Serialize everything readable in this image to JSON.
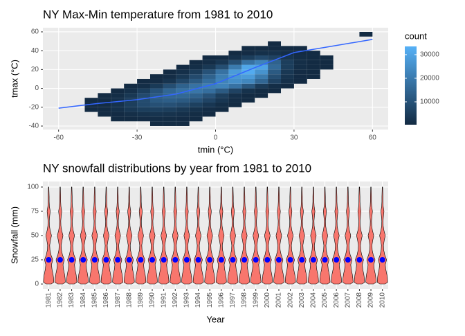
{
  "chart_data": [
    {
      "type": "heatmap",
      "title": "NY Max-Min temperature from 1981 to 2010",
      "x_label": "tmin (°C)",
      "y_label": "tmax (°C)",
      "xlim": [
        -66,
        66
      ],
      "xticks": [
        -60,
        -30,
        0,
        30,
        60
      ],
      "ylim": [
        -43.7,
        64.4
      ],
      "yticks": [
        -40,
        -20,
        0,
        20,
        40,
        60
      ],
      "grid": true,
      "color_scale": {
        "title": "count",
        "low": "#132B43",
        "high": "#56B1F7",
        "lim": [
          300,
          33500
        ],
        "ticks": [
          10000,
          20000,
          30000
        ]
      },
      "rows": [
        {
          "y": -37.5,
          "x": [
            -22.5,
            -17.5,
            -12.5
          ],
          "values": [
            80,
            120,
            60
          ]
        },
        {
          "y": -32.5,
          "x": [
            -37.5,
            -32.5,
            -27.5,
            -22.5,
            -17.5,
            -12.5,
            -7.5
          ],
          "values": [
            100,
            300,
            600,
            800,
            700,
            400,
            150
          ]
        },
        {
          "y": -27.5,
          "x": [
            -42.5,
            -37.5,
            -32.5,
            -27.5,
            -22.5,
            -17.5,
            -12.5,
            -7.5,
            -2.5
          ],
          "values": [
            100,
            400,
            1200,
            2000,
            2500,
            2200,
            1500,
            700,
            200
          ]
        },
        {
          "y": -22.5,
          "x": [
            -47.5,
            -42.5,
            -37.5,
            -32.5,
            -27.5,
            -22.5,
            -17.5,
            -12.5,
            -7.5,
            -2.5,
            2.5
          ],
          "values": [
            60,
            300,
            1500,
            3500,
            5000,
            5500,
            5000,
            3500,
            2000,
            800,
            200
          ]
        },
        {
          "y": -17.5,
          "x": [
            -47.5,
            -42.5,
            -37.5,
            -32.5,
            -27.5,
            -22.5,
            -17.5,
            -12.5,
            -7.5,
            -2.5,
            2.5,
            7.5
          ],
          "values": [
            100,
            500,
            2000,
            5000,
            8000,
            9500,
            9500,
            8000,
            5500,
            3000,
            1000,
            200
          ]
        },
        {
          "y": -12.5,
          "x": [
            -47.5,
            -42.5,
            -37.5,
            -32.5,
            -27.5,
            -22.5,
            -17.5,
            -12.5,
            -7.5,
            -2.5,
            2.5,
            7.5,
            12.5
          ],
          "values": [
            50,
            300,
            1500,
            4500,
            8500,
            12000,
            13000,
            12000,
            10000,
            6500,
            3000,
            800,
            150
          ]
        },
        {
          "y": -7.5,
          "x": [
            -42.5,
            -37.5,
            -32.5,
            -27.5,
            -22.5,
            -17.5,
            -12.5,
            -7.5,
            -2.5,
            2.5,
            7.5,
            12.5,
            17.5
          ],
          "values": [
            200,
            1000,
            3500,
            8000,
            12000,
            15000,
            15500,
            14000,
            10000,
            5000,
            1500,
            300,
            100
          ]
        },
        {
          "y": -2.5,
          "x": [
            -37.5,
            -32.5,
            -27.5,
            -22.5,
            -17.5,
            -12.5,
            -7.5,
            -2.5,
            2.5,
            7.5,
            12.5,
            17.5,
            22.5
          ],
          "values": [
            300,
            1500,
            5000,
            10000,
            15000,
            18000,
            19000,
            17000,
            12000,
            6000,
            2000,
            500,
            100
          ]
        },
        {
          "y": 2.5,
          "x": [
            -32.5,
            -27.5,
            -22.5,
            -17.5,
            -12.5,
            -7.5,
            -2.5,
            2.5,
            7.5,
            12.5,
            17.5,
            22.5,
            27.5
          ],
          "values": [
            200,
            1000,
            4000,
            9000,
            14000,
            18000,
            21000,
            22000,
            18000,
            11000,
            4000,
            1000,
            200
          ]
        },
        {
          "y": 7.5,
          "x": [
            -27.5,
            -22.5,
            -17.5,
            -12.5,
            -7.5,
            -2.5,
            2.5,
            7.5,
            12.5,
            17.5,
            22.5,
            27.5,
            32.5
          ],
          "values": [
            100,
            600,
            2500,
            7000,
            12000,
            17000,
            22000,
            25000,
            23000,
            15000,
            6000,
            1500,
            200
          ]
        },
        {
          "y": 12.5,
          "x": [
            -22.5,
            -17.5,
            -12.5,
            -7.5,
            -2.5,
            2.5,
            7.5,
            12.5,
            17.5,
            22.5,
            27.5,
            32.5,
            37.5
          ],
          "values": [
            100,
            800,
            3500,
            8000,
            14000,
            21000,
            27000,
            28000,
            20000,
            9000,
            2500,
            400,
            60
          ]
        },
        {
          "y": 17.5,
          "x": [
            -17.5,
            -12.5,
            -7.5,
            -2.5,
            2.5,
            7.5,
            12.5,
            17.5,
            22.5,
            27.5,
            32.5,
            37.5
          ],
          "values": [
            300,
            1500,
            4500,
            10000,
            18000,
            28000,
            32000,
            26000,
            12000,
            3500,
            600,
            100
          ]
        },
        {
          "y": 22.5,
          "x": [
            -12.5,
            -7.5,
            -2.5,
            2.5,
            7.5,
            12.5,
            17.5,
            22.5,
            27.5,
            32.5,
            37.5,
            42.5
          ],
          "values": [
            200,
            1000,
            3500,
            9000,
            20000,
            31000,
            30000,
            16000,
            5000,
            1000,
            200,
            50
          ]
        },
        {
          "y": 27.5,
          "x": [
            -7.5,
            -2.5,
            2.5,
            7.5,
            12.5,
            17.5,
            22.5,
            27.5,
            32.5,
            37.5,
            42.5
          ],
          "values": [
            200,
            900,
            3000,
            9000,
            18000,
            22000,
            14000,
            5000,
            1200,
            200,
            60
          ]
        },
        {
          "y": 32.5,
          "x": [
            -2.5,
            2.5,
            7.5,
            12.5,
            17.5,
            22.5,
            27.5,
            32.5,
            37.5,
            42.5
          ],
          "values": [
            100,
            500,
            1800,
            5000,
            8000,
            6000,
            2500,
            700,
            150,
            40
          ]
        },
        {
          "y": 37.5,
          "x": [
            7.5,
            12.5,
            17.5,
            22.5,
            27.5,
            32.5,
            37.5
          ],
          "values": [
            150,
            600,
            1500,
            1800,
            900,
            300,
            80
          ]
        },
        {
          "y": 42.5,
          "x": [
            12.5,
            17.5,
            22.5,
            27.5,
            32.5
          ],
          "values": [
            50,
            150,
            300,
            200,
            80
          ]
        },
        {
          "y": 47.5,
          "x": [
            22.5
          ],
          "values": [
            40
          ]
        },
        {
          "y": 57.5,
          "x": [
            57.5
          ],
          "values": [
            20
          ]
        }
      ],
      "smooth": {
        "color": "#3366FF",
        "x": [
          -60,
          -45,
          -30,
          -15,
          0,
          15,
          30,
          45,
          60
        ],
        "y": [
          -21,
          -16,
          -12,
          -6,
          5,
          22,
          38,
          45,
          52
        ]
      }
    },
    {
      "type": "violin",
      "title": "NY snowfall distributions by year from 1981 to 2010",
      "x_label": "Year",
      "y_label": "Snowfall (mm)",
      "ylim": [
        -5,
        105.7
      ],
      "yticks": [
        0,
        25,
        50,
        75,
        100
      ],
      "grid": true,
      "fill": "#F8766D",
      "point_color": "#0000FF",
      "categories": [
        "1981",
        "1982",
        "1983",
        "1984",
        "1985",
        "1986",
        "1987",
        "1988",
        "1989",
        "1990",
        "1991",
        "1992",
        "1993",
        "1994",
        "1995",
        "1996",
        "1997",
        "1998",
        "1999",
        "2000",
        "2001",
        "2002",
        "2003",
        "2004",
        "2005",
        "2006",
        "2007",
        "2008",
        "2009",
        "2010"
      ],
      "values": [
        25,
        25,
        25,
        25,
        25,
        25,
        25,
        25,
        25,
        25,
        25,
        25,
        25,
        25,
        25,
        25,
        25,
        25,
        25,
        25,
        25,
        25,
        25,
        25,
        25,
        25,
        25,
        25,
        25,
        25
      ],
      "profile": {
        "y": [
          0,
          2,
          6,
          10,
          15,
          20,
          25,
          30,
          35,
          40,
          45,
          50,
          55,
          60,
          65,
          70,
          75,
          80,
          85,
          90,
          95,
          100
        ],
        "width": [
          0.5,
          1,
          0.95,
          0.85,
          0.65,
          0.55,
          0.8,
          0.45,
          0.25,
          0.2,
          0.35,
          0.55,
          0.3,
          0.15,
          0.12,
          0.2,
          0.3,
          0.15,
          0.1,
          0.1,
          0.07,
          0.04
        ]
      }
    }
  ]
}
